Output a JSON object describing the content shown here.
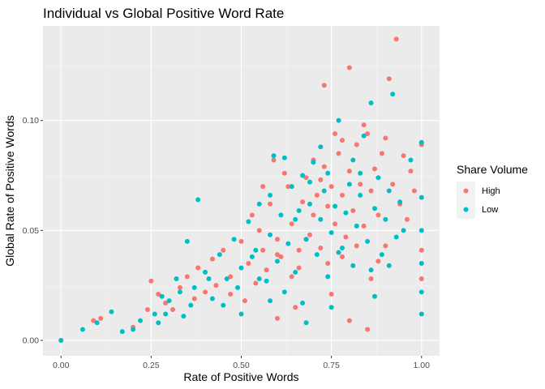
{
  "chart_data": {
    "type": "scatter",
    "title": "Individual vs Global Positive Word Rate",
    "xlabel": "Rate of Positive Words",
    "ylabel": "Global Rate of Positive Words",
    "xlim": [
      -0.05,
      1.05
    ],
    "ylim": [
      -0.007,
      0.143
    ],
    "x_ticks": [
      {
        "value": 0,
        "label": "0.00"
      },
      {
        "value": 0.25,
        "label": "0.25"
      },
      {
        "value": 0.5,
        "label": "0.50"
      },
      {
        "value": 0.75,
        "label": "0.75"
      },
      {
        "value": 1,
        "label": "1.00"
      }
    ],
    "y_ticks": [
      {
        "value": 0,
        "label": "0.00"
      },
      {
        "value": 0.05,
        "label": "0.05"
      },
      {
        "value": 0.1,
        "label": "0.10"
      }
    ],
    "legend": {
      "title": "Share Volume",
      "position": "right",
      "entries": [
        {
          "label": "High",
          "color": "#F8766D"
        },
        {
          "label": "Low",
          "color": "#00BFC4"
        }
      ]
    },
    "series": [
      {
        "name": "High",
        "color": "#F8766D",
        "points": [
          [
            0,
            0
          ],
          [
            0.09,
            0.009
          ],
          [
            0.11,
            0.01
          ],
          [
            0.2,
            0.006
          ],
          [
            0.25,
            0.027
          ],
          [
            0.24,
            0.014
          ],
          [
            0.27,
            0.021
          ],
          [
            0.29,
            0.017
          ],
          [
            0.33,
            0.024
          ],
          [
            0.35,
            0.029
          ],
          [
            0.38,
            0.033
          ],
          [
            0.4,
            0.022
          ],
          [
            0.42,
            0.037
          ],
          [
            0.45,
            0.041
          ],
          [
            0.47,
            0.029
          ],
          [
            0.5,
            0.045
          ],
          [
            0.52,
            0.035
          ],
          [
            0.53,
            0.057
          ],
          [
            0.55,
            0.05
          ],
          [
            0.56,
            0.041
          ],
          [
            0.58,
            0.062
          ],
          [
            0.6,
            0.046
          ],
          [
            0.61,
            0.038
          ],
          [
            0.63,
            0.07
          ],
          [
            0.64,
            0.053
          ],
          [
            0.66,
            0.041
          ],
          [
            0.67,
            0.063
          ],
          [
            0.68,
            0.074
          ],
          [
            0.69,
            0.048
          ],
          [
            0.7,
            0.057
          ],
          [
            0.71,
            0.066
          ],
          [
            0.72,
            0.042
          ],
          [
            0.73,
            0.079
          ],
          [
            0.73,
            0.116
          ],
          [
            0.74,
            0.061
          ],
          [
            0.75,
            0.07
          ],
          [
            0.76,
            0.053
          ],
          [
            0.77,
            0.085
          ],
          [
            0.78,
            0.066
          ],
          [
            0.79,
            0.047
          ],
          [
            0.8,
            0.124
          ],
          [
            0.8,
            0.077
          ],
          [
            0.81,
            0.059
          ],
          [
            0.82,
            0.089
          ],
          [
            0.83,
            0.071
          ],
          [
            0.84,
            0.052
          ],
          [
            0.85,
            0.094
          ],
          [
            0.86,
            0.068
          ],
          [
            0.87,
            0.078
          ],
          [
            0.88,
            0.057
          ],
          [
            0.89,
            0.085
          ],
          [
            0.9,
            0.092
          ],
          [
            0.91,
            0.119
          ],
          [
            0.92,
            0.071
          ],
          [
            0.93,
            0.137
          ],
          [
            0.94,
            0.062
          ],
          [
            0.95,
            0.084
          ],
          [
            0.96,
            0.055
          ],
          [
            0.97,
            0.077
          ],
          [
            0.98,
            0.068
          ],
          [
            1,
            0.089
          ],
          [
            1,
            0.041
          ],
          [
            1,
            0.028
          ],
          [
            0.62,
            0.076
          ],
          [
            0.66,
            0.033
          ],
          [
            0.7,
            0.082
          ],
          [
            0.74,
            0.035
          ],
          [
            0.76,
            0.094
          ],
          [
            0.78,
            0.038
          ],
          [
            0.82,
            0.043
          ],
          [
            0.86,
            0.028
          ],
          [
            0.88,
            0.036
          ],
          [
            0.9,
            0.043
          ],
          [
            0.84,
            0.098
          ],
          [
            0.78,
            0.091
          ],
          [
            0.72,
            0.073
          ],
          [
            0.68,
            0.046
          ],
          [
            0.6,
            0.039
          ],
          [
            0.64,
            0.029
          ],
          [
            0.57,
            0.032
          ],
          [
            0.54,
            0.026
          ],
          [
            0.51,
            0.018
          ],
          [
            0.47,
            0.021
          ],
          [
            0.43,
            0.025
          ],
          [
            0.37,
            0.019
          ],
          [
            0.31,
            0.014
          ],
          [
            0.85,
            0.005
          ],
          [
            0.8,
            0.009
          ],
          [
            0.75,
            0.021
          ],
          [
            0.65,
            0.015
          ],
          [
            0.6,
            0.01
          ],
          [
            0.56,
            0.07
          ],
          [
            0.59,
            0.082
          ]
        ]
      },
      {
        "name": "Low",
        "color": "#00BFC4",
        "points": [
          [
            0,
            0
          ],
          [
            0.06,
            0.005
          ],
          [
            0.1,
            0.008
          ],
          [
            0.14,
            0.013
          ],
          [
            0.17,
            0.004
          ],
          [
            0.2,
            0.005
          ],
          [
            0.22,
            0.009
          ],
          [
            0.26,
            0.012
          ],
          [
            0.28,
            0.02
          ],
          [
            0.3,
            0.018
          ],
          [
            0.32,
            0.028
          ],
          [
            0.34,
            0.011
          ],
          [
            0.35,
            0.045
          ],
          [
            0.37,
            0.024
          ],
          [
            0.38,
            0.064
          ],
          [
            0.4,
            0.031
          ],
          [
            0.42,
            0.019
          ],
          [
            0.44,
            0.039
          ],
          [
            0.46,
            0.028
          ],
          [
            0.48,
            0.046
          ],
          [
            0.5,
            0.033
          ],
          [
            0.5,
            0.012
          ],
          [
            0.52,
            0.054
          ],
          [
            0.54,
            0.041
          ],
          [
            0.55,
            0.062
          ],
          [
            0.57,
            0.027
          ],
          [
            0.58,
            0.048
          ],
          [
            0.59,
            0.084
          ],
          [
            0.6,
            0.036
          ],
          [
            0.61,
            0.057
          ],
          [
            0.62,
            0.083
          ],
          [
            0.63,
            0.044
          ],
          [
            0.64,
            0.07
          ],
          [
            0.65,
            0.031
          ],
          [
            0.66,
            0.059
          ],
          [
            0.67,
            0.075
          ],
          [
            0.67,
            0.017
          ],
          [
            0.68,
            0.046
          ],
          [
            0.69,
            0.062
          ],
          [
            0.7,
            0.081
          ],
          [
            0.71,
            0.039
          ],
          [
            0.72,
            0.055
          ],
          [
            0.73,
            0.068
          ],
          [
            0.74,
            0.029
          ],
          [
            0.75,
            0.049
          ],
          [
            0.76,
            0.061
          ],
          [
            0.77,
            0.1
          ],
          [
            0.78,
            0.042
          ],
          [
            0.79,
            0.058
          ],
          [
            0.8,
            0.071
          ],
          [
            0.81,
            0.034
          ],
          [
            0.82,
            0.052
          ],
          [
            0.83,
            0.066
          ],
          [
            0.84,
            0.093
          ],
          [
            0.85,
            0.045
          ],
          [
            0.86,
            0.108
          ],
          [
            0.87,
            0.06
          ],
          [
            0.88,
            0.074
          ],
          [
            0.89,
            0.039
          ],
          [
            0.9,
            0.055
          ],
          [
            0.91,
            0.068
          ],
          [
            0.92,
            0.112
          ],
          [
            0.93,
            0.047
          ],
          [
            0.94,
            0.063
          ],
          [
            0.95,
            0.05
          ],
          [
            0.97,
            0.082
          ],
          [
            1,
            0.09
          ],
          [
            1,
            0.065
          ],
          [
            1,
            0.05
          ],
          [
            1,
            0.035
          ],
          [
            1,
            0.022
          ],
          [
            1,
            0.012
          ],
          [
            0.65,
            0.055
          ],
          [
            0.69,
            0.072
          ],
          [
            0.72,
            0.088
          ],
          [
            0.74,
            0.076
          ],
          [
            0.77,
            0.04
          ],
          [
            0.81,
            0.082
          ],
          [
            0.83,
            0.076
          ],
          [
            0.86,
            0.032
          ],
          [
            0.62,
            0.022
          ],
          [
            0.58,
            0.018
          ],
          [
            0.55,
            0.028
          ],
          [
            0.53,
            0.038
          ],
          [
            0.49,
            0.024
          ],
          [
            0.45,
            0.016
          ],
          [
            0.41,
            0.028
          ],
          [
            0.36,
            0.016
          ],
          [
            0.33,
            0.022
          ],
          [
            0.29,
            0.012
          ],
          [
            0.27,
            0.008
          ],
          [
            0.68,
            0.008
          ],
          [
            0.75,
            0.015
          ],
          [
            0.87,
            0.02
          ],
          [
            0.91,
            0.034
          ],
          [
            0.58,
            0.066
          ]
        ]
      }
    ]
  }
}
